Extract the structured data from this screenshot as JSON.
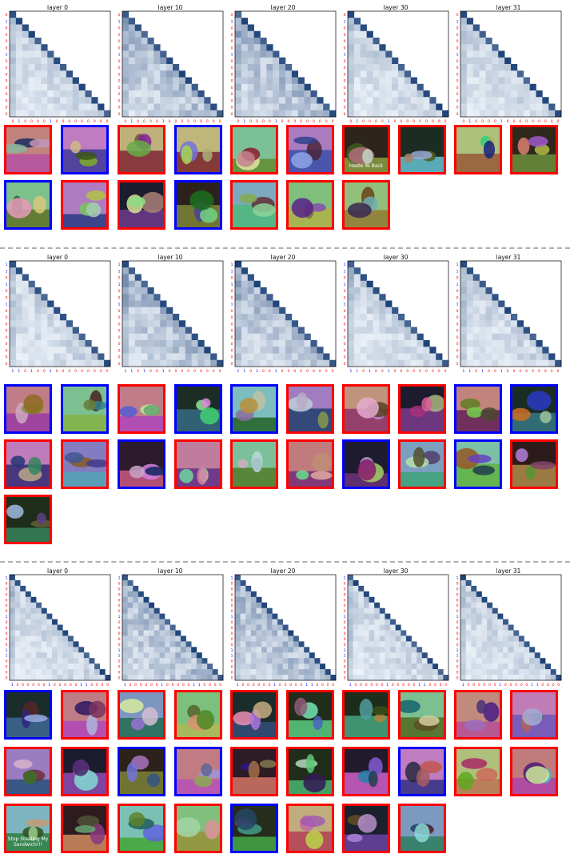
{
  "layer_titles": [
    "layer 0",
    "layer 10",
    "layer 20",
    "layer 30",
    "layer 31"
  ],
  "colors": {
    "match": "#0000ff",
    "mismatch": "#ff0000",
    "heatmap": "Blues",
    "divider": "#b0b0b0"
  },
  "panels": [
    {
      "token_labels": [
        "0",
        "1",
        "0",
        "0",
        "0",
        "0",
        "1",
        "0",
        "0",
        "0",
        "0",
        "0",
        "0",
        "0",
        "0",
        "0"
      ],
      "thumbnails": [
        {
          "scene": "riders-on-horses-field",
          "border": "mismatch"
        },
        {
          "scene": "antelope-herd-savanna",
          "border": "match"
        },
        {
          "scene": "brown-horse-stable",
          "border": "mismatch"
        },
        {
          "scene": "oryx-grassland",
          "border": "match"
        },
        {
          "scene": "jockey-racehorse",
          "border": "mismatch"
        },
        {
          "scene": "rider-horse-showground",
          "border": "mismatch"
        },
        {
          "scene": "jockey-racehorse-banner",
          "border": "mismatch",
          "caption": "Haste Ye Back"
        },
        {
          "scene": "horse-jumping-fence",
          "border": "mismatch"
        },
        {
          "scene": "jockey-racehorse-green",
          "border": "mismatch"
        },
        {
          "scene": "horse-pasture",
          "border": "mismatch"
        },
        {
          "scene": "oryx-horns-closeup",
          "border": "match"
        },
        {
          "scene": "riders-horses-stable",
          "border": "mismatch"
        },
        {
          "scene": "black-horse-arena",
          "border": "mismatch"
        },
        {
          "scene": "oryx-standing",
          "border": "match"
        },
        {
          "scene": "racehorse-galloping",
          "border": "mismatch"
        },
        {
          "scene": "horse-meadow",
          "border": "mismatch"
        },
        {
          "scene": "brown-horse-head",
          "border": "mismatch"
        }
      ]
    },
    {
      "token_labels": [
        "1",
        "1",
        "0",
        "1",
        "0",
        "0",
        "1",
        "0",
        "0",
        "0",
        "0",
        "0",
        "0",
        "0",
        "0",
        "0"
      ],
      "thumbnails": [
        {
          "scene": "lime-drink-straw",
          "border": "match"
        },
        {
          "scene": "lemonade-pitcher",
          "border": "match"
        },
        {
          "scene": "pool-table",
          "border": "mismatch"
        },
        {
          "scene": "margarita-limes",
          "border": "match"
        },
        {
          "scene": "orange-cocktails",
          "border": "match"
        },
        {
          "scene": "pool-table-wood",
          "border": "mismatch"
        },
        {
          "scene": "pool-table-small",
          "border": "mismatch"
        },
        {
          "scene": "pool-table-folding",
          "border": "mismatch"
        },
        {
          "scene": "green-cocktail-dark",
          "border": "match"
        },
        {
          "scene": "mojito-glass",
          "border": "match"
        },
        {
          "scene": "pool-table-room",
          "border": "mismatch"
        },
        {
          "scene": "snooker-table",
          "border": "mismatch"
        },
        {
          "scene": "orange-drink-blue",
          "border": "match"
        },
        {
          "scene": "pool-table-night",
          "border": "mismatch"
        },
        {
          "scene": "people-pool-hall",
          "border": "mismatch"
        },
        {
          "scene": "pool-room",
          "border": "mismatch"
        },
        {
          "scene": "milky-drink-lime",
          "border": "match"
        },
        {
          "scene": "billiard-table-ornate",
          "border": "mismatch"
        },
        {
          "scene": "margarita-glasses",
          "border": "match"
        },
        {
          "scene": "pool-table-lounge",
          "border": "mismatch"
        },
        {
          "scene": "player-pool-shot",
          "border": "mismatch"
        }
      ]
    },
    {
      "token_labels": [
        "1",
        "0",
        "0",
        "0",
        "0",
        "0",
        "0",
        "1",
        "0",
        "0",
        "0",
        "0",
        "0",
        "1",
        "1",
        "0",
        "0",
        "0",
        "0"
      ],
      "thumbnails": [
        {
          "scene": "garden-fork-trowel",
          "border": "match"
        },
        {
          "scene": "guinea-pig-red-cage",
          "border": "mismatch"
        },
        {
          "scene": "guinea-pig-white-brown",
          "border": "mismatch"
        },
        {
          "scene": "guinea-pigs-grass",
          "border": "mismatch"
        },
        {
          "scene": "white-guinea-pig",
          "border": "mismatch"
        },
        {
          "scene": "cream-guinea-pig-blue",
          "border": "mismatch"
        },
        {
          "scene": "guinea-pig-group",
          "border": "mismatch"
        },
        {
          "scene": "brown-guinea-pig-face",
          "border": "mismatch"
        },
        {
          "scene": "ginger-guinea-pig",
          "border": "mismatch"
        },
        {
          "scene": "guinea-pig-bowl",
          "border": "mismatch"
        },
        {
          "scene": "guinea-pig-eating",
          "border": "mismatch"
        },
        {
          "scene": "black-guinea-pig",
          "border": "mismatch"
        },
        {
          "scene": "hand-fork-tool",
          "border": "match"
        },
        {
          "scene": "person-digging-garden",
          "border": "match"
        },
        {
          "scene": "white-rabbit-dark",
          "border": "mismatch"
        },
        {
          "scene": "guinea-pig-held",
          "border": "mismatch"
        },
        {
          "scene": "guinea-pigs-pair",
          "border": "mismatch"
        },
        {
          "scene": "garden-fork",
          "border": "match"
        },
        {
          "scene": "black-white-guinea-pig",
          "border": "mismatch"
        },
        {
          "scene": "tricolor-guinea-pig",
          "border": "mismatch"
        },
        {
          "scene": "guinea-pig-sign",
          "border": "mismatch",
          "caption": "Stop Stealing My Sandwich!!!"
        },
        {
          "scene": "guinea-pig-closeup",
          "border": "mismatch"
        },
        {
          "scene": "white-guinea-pig-bedding",
          "border": "mismatch"
        },
        {
          "scene": "guinea-pig-red-blanket",
          "border": "mismatch"
        },
        {
          "scene": "garden-tool-set",
          "border": "match"
        },
        {
          "scene": "children-guinea-pig",
          "border": "mismatch"
        },
        {
          "scene": "guinea-pig-dark",
          "border": "mismatch"
        },
        {
          "scene": "two-guinea-pigs",
          "border": "mismatch"
        }
      ]
    }
  ]
}
